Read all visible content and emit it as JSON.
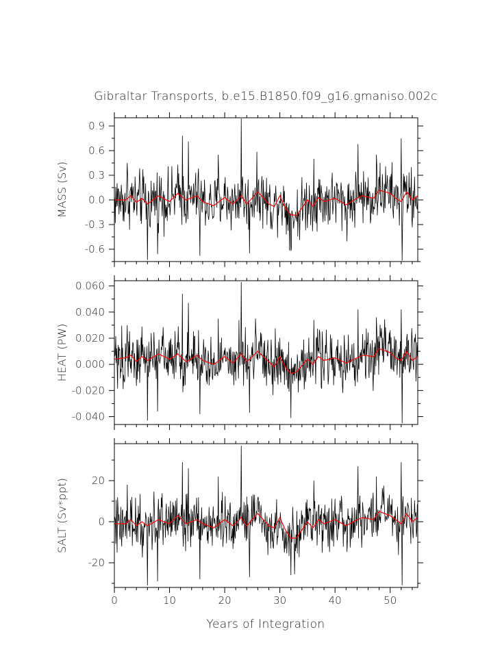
{
  "figure": {
    "title": "Gibraltar Transports, b.e15.B1850.f09_g16.gmaniso.002c",
    "xlabel": "Years of Integration"
  },
  "colors": {
    "raw_series": "#000000",
    "smoothed_series": "#ff0000",
    "axes": "#000000"
  },
  "chart_data": [
    {
      "type": "line",
      "ylabel": "MASS (Sv)",
      "xlim": [
        0,
        55
      ],
      "ylim": [
        -0.75,
        1.0
      ],
      "xticks": [
        0,
        10,
        20,
        30,
        40,
        50
      ],
      "xtick_labels": [
        "0",
        "10",
        "20",
        "30",
        "40",
        "50"
      ],
      "yticks": [
        -0.6,
        -0.3,
        0.0,
        0.3,
        0.6,
        0.9
      ],
      "ytick_labels": [
        "-0.6",
        "-0.3",
        "0.0",
        "0.3",
        "0.6",
        "0.9"
      ],
      "amp": 0.18,
      "spikes": [
        [
          12.3,
          0.78
        ],
        [
          13.4,
          0.71
        ],
        [
          23.0,
          0.99
        ],
        [
          6.0,
          -0.73
        ],
        [
          15.5,
          -0.68
        ],
        [
          24.5,
          -0.65
        ],
        [
          32.0,
          -0.62
        ],
        [
          52.2,
          -0.74
        ],
        [
          44.2,
          0.68
        ],
        [
          52.0,
          0.75
        ],
        [
          7.8,
          -0.66
        ],
        [
          2.3,
          0.45
        ],
        [
          18.8,
          0.55
        ],
        [
          36.2,
          0.5
        ],
        [
          47.5,
          0.55
        ]
      ],
      "smooth_anchors": [
        [
          0,
          0.0
        ],
        [
          2,
          0.0
        ],
        [
          3,
          0.05
        ],
        [
          4,
          -0.03
        ],
        [
          5,
          0.02
        ],
        [
          6,
          -0.05
        ],
        [
          8,
          0.05
        ],
        [
          10,
          -0.02
        ],
        [
          11.5,
          0.08
        ],
        [
          13,
          0.0
        ],
        [
          15,
          0.05
        ],
        [
          16,
          -0.02
        ],
        [
          18,
          -0.07
        ],
        [
          20,
          0.03
        ],
        [
          21.5,
          -0.05
        ],
        [
          23,
          0.05
        ],
        [
          24,
          -0.05
        ],
        [
          26,
          0.1
        ],
        [
          28,
          -0.05
        ],
        [
          29,
          -0.08
        ],
        [
          30,
          0.05
        ],
        [
          31,
          -0.1
        ],
        [
          32,
          -0.18
        ],
        [
          33,
          -0.19
        ],
        [
          34,
          -0.1
        ],
        [
          35,
          0.0
        ],
        [
          36,
          -0.08
        ],
        [
          37,
          0.03
        ],
        [
          38,
          -0.02
        ],
        [
          40,
          0.02
        ],
        [
          42,
          -0.06
        ],
        [
          44,
          0.02
        ],
        [
          45,
          0.05
        ],
        [
          47,
          0.02
        ],
        [
          48,
          0.12
        ],
        [
          50,
          0.08
        ],
        [
          51,
          0.02
        ],
        [
          52,
          -0.02
        ],
        [
          53,
          0.1
        ],
        [
          54,
          0.0
        ],
        [
          55,
          0.05
        ]
      ]
    },
    {
      "type": "line",
      "ylabel": "HEAT (PW)",
      "xlim": [
        0,
        55
      ],
      "ylim": [
        -0.046,
        0.064
      ],
      "xticks": [
        0,
        10,
        20,
        30,
        40,
        50
      ],
      "xtick_labels": [
        "0",
        "10",
        "20",
        "30",
        "40",
        "50"
      ],
      "yticks": [
        -0.04,
        -0.02,
        0.0,
        0.02,
        0.04,
        0.06
      ],
      "ytick_labels": [
        "-0.040",
        "-0.020",
        "0.000",
        "0.020",
        "0.040",
        "0.060"
      ],
      "amp": 0.011,
      "spikes": [
        [
          12.3,
          0.054
        ],
        [
          13.4,
          0.047
        ],
        [
          23.0,
          0.063
        ],
        [
          6.0,
          -0.043
        ],
        [
          15.5,
          -0.038
        ],
        [
          24.5,
          -0.037
        ],
        [
          32.0,
          -0.041
        ],
        [
          52.2,
          -0.045
        ],
        [
          44.2,
          0.042
        ],
        [
          52.0,
          0.042
        ],
        [
          7.8,
          -0.036
        ],
        [
          2.3,
          0.03
        ],
        [
          18.8,
          0.035
        ],
        [
          36.2,
          0.034
        ],
        [
          47.5,
          0.036
        ]
      ],
      "smooth_anchors": [
        [
          0,
          0.004
        ],
        [
          2,
          0.005
        ],
        [
          3,
          0.007
        ],
        [
          4,
          0.002
        ],
        [
          5,
          0.006
        ],
        [
          6,
          0.003
        ],
        [
          8,
          0.008
        ],
        [
          10,
          0.004
        ],
        [
          11.5,
          0.008
        ],
        [
          13,
          0.002
        ],
        [
          15,
          0.007
        ],
        [
          16,
          0.003
        ],
        [
          18,
          0.0
        ],
        [
          20,
          0.006
        ],
        [
          21.5,
          0.001
        ],
        [
          23,
          0.008
        ],
        [
          24,
          0.002
        ],
        [
          26,
          0.01
        ],
        [
          28,
          0.002
        ],
        [
          29,
          -0.002
        ],
        [
          30,
          0.006
        ],
        [
          31,
          -0.002
        ],
        [
          32,
          -0.007
        ],
        [
          33,
          -0.006
        ],
        [
          34,
          -0.001
        ],
        [
          35,
          0.004
        ],
        [
          36,
          0.0
        ],
        [
          37,
          0.006
        ],
        [
          38,
          0.003
        ],
        [
          40,
          0.005
        ],
        [
          42,
          0.001
        ],
        [
          44,
          0.005
        ],
        [
          45,
          0.007
        ],
        [
          47,
          0.006
        ],
        [
          48,
          0.012
        ],
        [
          50,
          0.009
        ],
        [
          51,
          0.005
        ],
        [
          52,
          0.003
        ],
        [
          53,
          0.01
        ],
        [
          54,
          0.003
        ],
        [
          55,
          0.006
        ]
      ]
    },
    {
      "type": "line",
      "ylabel": "SALT (Sv*ppt)",
      "xlim": [
        0,
        55
      ],
      "ylim": [
        -32,
        38
      ],
      "xticks": [
        0,
        10,
        20,
        30,
        40,
        50
      ],
      "xtick_labels": [
        "0",
        "10",
        "20",
        "30",
        "40",
        "50"
      ],
      "yticks": [
        -20,
        0,
        20
      ],
      "ytick_labels": [
        "-20",
        "0",
        "20"
      ],
      "amp": 6.5,
      "spikes": [
        [
          12.3,
          29
        ],
        [
          13.4,
          26
        ],
        [
          23.0,
          37
        ],
        [
          6.0,
          -31
        ],
        [
          15.5,
          -28
        ],
        [
          24.5,
          -27
        ],
        [
          32.0,
          -26
        ],
        [
          52.2,
          -31
        ],
        [
          44.2,
          27
        ],
        [
          52.0,
          29
        ],
        [
          7.8,
          -29
        ],
        [
          2.3,
          18
        ],
        [
          18.8,
          22
        ],
        [
          36.2,
          20
        ],
        [
          47.5,
          22
        ]
      ],
      "smooth_anchors": [
        [
          0,
          -1
        ],
        [
          2,
          -1
        ],
        [
          3,
          1
        ],
        [
          4,
          -2
        ],
        [
          5,
          0
        ],
        [
          6,
          -2
        ],
        [
          8,
          1
        ],
        [
          10,
          -1
        ],
        [
          11.5,
          3
        ],
        [
          13,
          -1
        ],
        [
          15,
          1
        ],
        [
          16,
          -1
        ],
        [
          18,
          -3
        ],
        [
          20,
          1
        ],
        [
          21.5,
          -2
        ],
        [
          23,
          2
        ],
        [
          24,
          -2
        ],
        [
          26,
          4
        ],
        [
          28,
          -2
        ],
        [
          29,
          -3
        ],
        [
          30,
          2
        ],
        [
          31,
          -4
        ],
        [
          32,
          -8
        ],
        [
          33,
          -8
        ],
        [
          34,
          -4
        ],
        [
          35,
          0
        ],
        [
          36,
          -3
        ],
        [
          37,
          1
        ],
        [
          38,
          -1
        ],
        [
          40,
          1
        ],
        [
          42,
          -2
        ],
        [
          44,
          1
        ],
        [
          45,
          2
        ],
        [
          47,
          1
        ],
        [
          48,
          5
        ],
        [
          50,
          3
        ],
        [
          51,
          1
        ],
        [
          52,
          -1
        ],
        [
          53,
          4
        ],
        [
          54,
          0
        ],
        [
          55,
          2
        ]
      ]
    }
  ]
}
